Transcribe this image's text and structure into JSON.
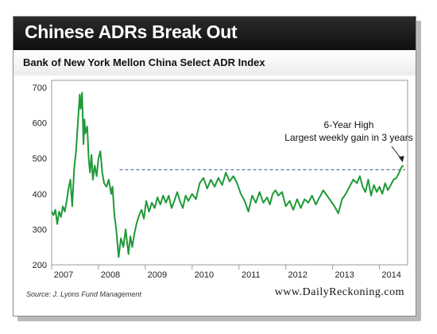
{
  "header": {
    "title": "Chinese ADRs Break Out",
    "subtitle": "Bank of New York Mellon China Select ADR Index"
  },
  "footer": {
    "source": "Source: J. Lyons Fund Management",
    "credit": "www.DailyReckoning.com"
  },
  "colors": {
    "line": "#1e9a37",
    "reference_line": "#3c5a8a",
    "banner": "#1a1a1a"
  },
  "chart_data": {
    "type": "line",
    "title": "Bank of New York Mellon China Select ADR Index",
    "xlabel": "",
    "ylabel": "",
    "xlim": [
      2007.0,
      2014.6
    ],
    "ylim": [
      200,
      720
    ],
    "y_ticks": [
      200,
      300,
      400,
      500,
      600,
      700
    ],
    "x_ticks": [
      "2007",
      "2008",
      "2009",
      "2010",
      "2011",
      "2012",
      "2013",
      "2014"
    ],
    "x_tick_values": [
      2007,
      2008,
      2009,
      2010,
      2011,
      2012,
      2013,
      2014
    ],
    "grid": false,
    "reference_line": {
      "y": 468,
      "x_start": 2008.45,
      "x_end": 2014.55,
      "style": "dashed"
    },
    "annotation": {
      "lines": [
        "6-Year High",
        "Largest weekly gain in 3 years"
      ]
    },
    "series": [
      {
        "x": [
          2007.0,
          2007.04,
          2007.08,
          2007.12,
          2007.16,
          2007.2,
          2007.24,
          2007.28,
          2007.32,
          2007.36,
          2007.4,
          2007.44,
          2007.48,
          2007.52,
          2007.56,
          2007.6,
          2007.62,
          2007.65,
          2007.68,
          2007.7,
          2007.72,
          2007.76,
          2007.79,
          2007.82,
          2007.85,
          2007.88,
          2007.92,
          2007.96,
          2008.0,
          2008.04,
          2008.08,
          2008.12,
          2008.17,
          2008.22,
          2008.27,
          2008.3,
          2008.34,
          2008.38,
          2008.43,
          2008.48,
          2008.53,
          2008.58,
          2008.64,
          2008.68,
          2008.72,
          2008.77,
          2008.82,
          2008.87,
          2008.92,
          2008.97,
          2009.02,
          2009.08,
          2009.14,
          2009.2,
          2009.26,
          2009.32,
          2009.38,
          2009.44,
          2009.5,
          2009.56,
          2009.62,
          2009.68,
          2009.74,
          2009.8,
          2009.86,
          2009.92,
          2010.0,
          2010.08,
          2010.16,
          2010.24,
          2010.32,
          2010.4,
          2010.48,
          2010.56,
          2010.64,
          2010.72,
          2010.8,
          2010.88,
          2010.96,
          2011.04,
          2011.12,
          2011.2,
          2011.28,
          2011.36,
          2011.44,
          2011.52,
          2011.6,
          2011.66,
          2011.72,
          2011.78,
          2011.84,
          2011.92,
          2012.0,
          2012.08,
          2012.16,
          2012.24,
          2012.32,
          2012.4,
          2012.48,
          2012.56,
          2012.64,
          2012.72,
          2012.8,
          2012.88,
          2012.96,
          2013.04,
          2013.12,
          2013.2,
          2013.28,
          2013.36,
          2013.44,
          2013.52,
          2013.58,
          2013.64,
          2013.7,
          2013.76,
          2013.82,
          2013.88,
          2013.94,
          2014.0,
          2014.06,
          2014.12,
          2014.18,
          2014.24,
          2014.3,
          2014.36,
          2014.42,
          2014.47,
          2014.51
        ],
        "values": [
          350,
          340,
          355,
          315,
          350,
          335,
          365,
          350,
          380,
          415,
          440,
          365,
          470,
          520,
          600,
          680,
          640,
          685,
          540,
          610,
          570,
          590,
          500,
          460,
          510,
          440,
          480,
          450,
          500,
          520,
          460,
          430,
          420,
          440,
          400,
          420,
          340,
          300,
          222,
          275,
          250,
          300,
          230,
          280,
          250,
          290,
          320,
          340,
          355,
          330,
          380,
          350,
          375,
          360,
          390,
          370,
          395,
          375,
          395,
          360,
          380,
          405,
          380,
          360,
          395,
          380,
          400,
          385,
          430,
          445,
          415,
          440,
          420,
          445,
          425,
          460,
          435,
          450,
          430,
          400,
          380,
          350,
          395,
          375,
          405,
          375,
          390,
          370,
          400,
          410,
          395,
          405,
          365,
          380,
          355,
          385,
          360,
          385,
          375,
          395,
          370,
          390,
          410,
          395,
          380,
          365,
          345,
          385,
          400,
          420,
          440,
          430,
          450,
          420,
          405,
          440,
          395,
          425,
          405,
          420,
          400,
          430,
          410,
          425,
          440,
          445,
          460,
          475,
          480
        ]
      }
    ]
  }
}
